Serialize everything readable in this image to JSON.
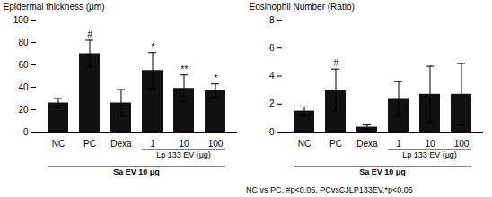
{
  "chart_data": [
    {
      "type": "bar",
      "ylabel": "Epidermal thickness (μm)",
      "categories": [
        "NC",
        "PC",
        "Dexa",
        "1",
        "10",
        "100"
      ],
      "values": [
        26,
        70,
        26,
        55,
        39,
        37
      ],
      "errors": [
        4,
        12,
        12,
        16,
        12,
        6
      ],
      "color": "#111111",
      "significance_labels": [
        null,
        "#",
        null,
        "*",
        "**",
        "*"
      ],
      "groups": [
        {
          "label": "Lp 133 EV (μg)",
          "categories": [
            "1",
            "10",
            "100"
          ]
        },
        {
          "label": "Sa EV 10 μg",
          "categories": [
            "NC",
            "PC",
            "Dexa",
            "1",
            "10",
            "100"
          ]
        }
      ],
      "ylim": [
        0,
        100
      ],
      "yticks": [
        0,
        20,
        40,
        60,
        80,
        100
      ],
      "grid": false
    },
    {
      "type": "bar",
      "ylabel": "Eosinophil Number (Ratio)",
      "categories": [
        "NC",
        "PC",
        "Dexa",
        "1",
        "10",
        "100"
      ],
      "values": [
        1.5,
        3.0,
        0.35,
        2.4,
        2.7,
        2.7
      ],
      "errors": [
        0.3,
        1.5,
        0.15,
        1.2,
        2.0,
        2.2
      ],
      "color": "#111111",
      "significance_labels": [
        null,
        "#",
        null,
        null,
        null,
        null
      ],
      "groups": [
        {
          "label": "Lp 133 EV (μg)",
          "categories": [
            "1",
            "10",
            "100"
          ]
        },
        {
          "label": "Sa EV 10 μg",
          "categories": [
            "NC",
            "PC",
            "Dexa",
            "1",
            "10",
            "100"
          ]
        }
      ],
      "ylim": [
        0,
        8
      ],
      "yticks": [
        0,
        2,
        4,
        6,
        8
      ],
      "grid": false
    }
  ],
  "caption": "NC vs PC, #p<0.05, PCvsCJLP133EV,*p<0.05"
}
